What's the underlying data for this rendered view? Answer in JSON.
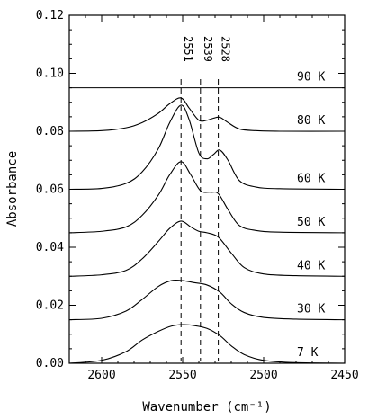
{
  "chart_data": {
    "type": "line",
    "xlabel": "Wavenumber (cm⁻¹)",
    "ylabel": "Absorbance",
    "xlim": [
      2620,
      2450
    ],
    "ylim": [
      0.0,
      0.12
    ],
    "x_reversed": true,
    "xticks": [
      2600,
      2550,
      2500,
      2450
    ],
    "xtick_labels": [
      "2600",
      "2550",
      "2500",
      "2450"
    ],
    "yticks": [
      0.0,
      0.02,
      0.04,
      0.06,
      0.08,
      0.1,
      0.12
    ],
    "ytick_labels": [
      "0.00",
      "0.02",
      "0.04",
      "0.06",
      "0.08",
      "0.10",
      "0.12"
    ],
    "grid": false,
    "vertical_markers": [
      {
        "x": 2551,
        "label": "2551",
        "style": "dashed"
      },
      {
        "x": 2539,
        "label": "2539",
        "style": "dashed"
      },
      {
        "x": 2528,
        "label": "2528",
        "style": "dashed"
      }
    ],
    "series": [
      {
        "name": "7 K",
        "x": [
          2620,
          2600,
          2585,
          2575,
          2565,
          2557,
          2550,
          2543,
          2535,
          2527,
          2520,
          2512,
          2500,
          2480,
          2450
        ],
        "y": [
          0.0,
          0.001,
          0.004,
          0.008,
          0.011,
          0.0128,
          0.0133,
          0.013,
          0.012,
          0.0095,
          0.006,
          0.003,
          0.001,
          0.0002,
          0.0
        ]
      },
      {
        "name": "30 K",
        "x": [
          2620,
          2600,
          2585,
          2575,
          2565,
          2557,
          2550,
          2543,
          2535,
          2527,
          2520,
          2512,
          2500,
          2480,
          2450
        ],
        "y": [
          0.015,
          0.0155,
          0.018,
          0.022,
          0.0265,
          0.0285,
          0.0285,
          0.0278,
          0.027,
          0.0245,
          0.0205,
          0.0175,
          0.0158,
          0.0152,
          0.015
        ]
      },
      {
        "name": "40 K",
        "x": [
          2620,
          2600,
          2585,
          2575,
          2565,
          2558,
          2551,
          2545,
          2540,
          2535,
          2528,
          2520,
          2512,
          2500,
          2480,
          2450
        ],
        "y": [
          0.03,
          0.0305,
          0.032,
          0.036,
          0.042,
          0.0465,
          0.049,
          0.047,
          0.0455,
          0.045,
          0.0435,
          0.038,
          0.033,
          0.0308,
          0.0302,
          0.03
        ]
      },
      {
        "name": "50 K",
        "x": [
          2620,
          2600,
          2585,
          2575,
          2565,
          2558,
          2551,
          2545,
          2539,
          2533,
          2528,
          2522,
          2515,
          2505,
          2490,
          2450
        ],
        "y": [
          0.045,
          0.0455,
          0.047,
          0.051,
          0.058,
          0.065,
          0.0695,
          0.065,
          0.0595,
          0.059,
          0.0585,
          0.053,
          0.0475,
          0.0458,
          0.0452,
          0.045
        ]
      },
      {
        "name": "60 K",
        "x": [
          2620,
          2600,
          2585,
          2575,
          2565,
          2558,
          2551,
          2546,
          2540,
          2535,
          2531,
          2527,
          2522,
          2515,
          2505,
          2490,
          2450
        ],
        "y": [
          0.06,
          0.0603,
          0.062,
          0.066,
          0.074,
          0.083,
          0.089,
          0.084,
          0.0725,
          0.0705,
          0.072,
          0.0735,
          0.07,
          0.063,
          0.0608,
          0.0602,
          0.06
        ]
      },
      {
        "name": "80 K",
        "x": [
          2620,
          2600,
          2585,
          2575,
          2565,
          2558,
          2551,
          2546,
          2540,
          2535,
          2531,
          2527,
          2522,
          2515,
          2505,
          2490,
          2450
        ],
        "y": [
          0.08,
          0.0802,
          0.0812,
          0.083,
          0.0862,
          0.0895,
          0.0915,
          0.088,
          0.0838,
          0.0838,
          0.0845,
          0.0848,
          0.083,
          0.0808,
          0.0802,
          0.08,
          0.08
        ]
      },
      {
        "name": "90 K",
        "x": [
          2620,
          2450
        ],
        "y": [
          0.095,
          0.095
        ]
      }
    ]
  }
}
